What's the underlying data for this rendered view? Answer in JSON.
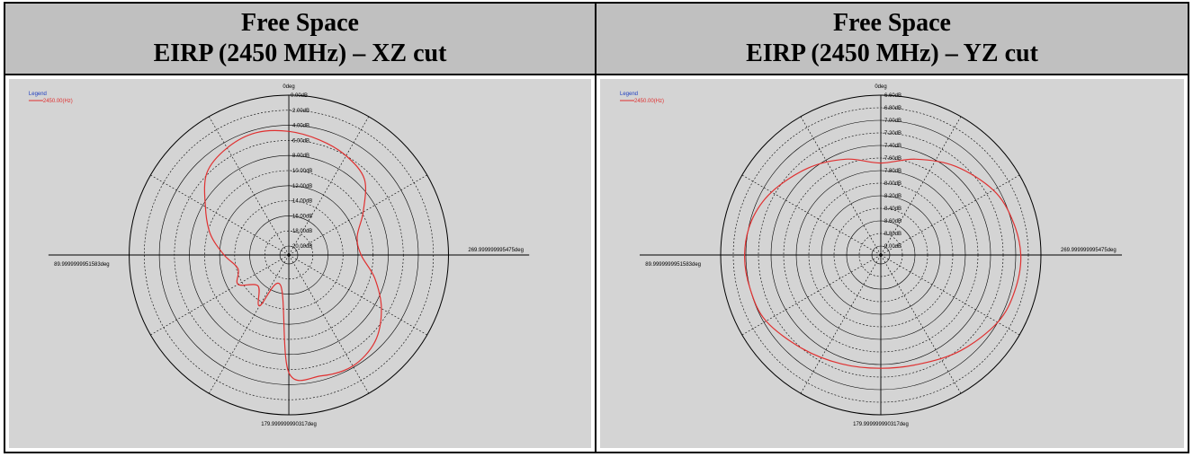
{
  "headers": [
    {
      "line1": "Free Space",
      "line2": "EIRP (2450 MHz) – XZ cut"
    },
    {
      "line1": "Free Space",
      "line2": "EIRP (2450 MHz) – YZ cut"
    }
  ],
  "colors": {
    "trace": "#e03030",
    "legend_title": "#2040c0",
    "grid": "#000000",
    "background": "#d4d4d4"
  },
  "chart_data": [
    {
      "type": "polar",
      "legend_title": "Legend",
      "series": [
        {
          "name": "2450.00(Hz)",
          "color": "#e03030"
        }
      ],
      "angle_labels": {
        "top": "0deg",
        "left": "89.9999999951583deg",
        "right": "269.999999995475deg",
        "bottom": "179.999999990317deg"
      },
      "radial_labels": [
        "0.00dB",
        "-2.00dB",
        "-4.00dB",
        "-6.00dB",
        "-8.00dB",
        "-10.00dB",
        "-12.00dB",
        "-14.00dB",
        "-16.00dB",
        "-18.00dB",
        "-20.00dB"
      ],
      "rlim": [
        -20,
        0
      ],
      "grid": true,
      "points": [
        [
          0,
          -4.8
        ],
        [
          15,
          -4.4
        ],
        [
          30,
          -4.8
        ],
        [
          45,
          -5.8
        ],
        [
          60,
          -8.4
        ],
        [
          75,
          -10.4
        ],
        [
          90,
          -12.6
        ],
        [
          105,
          -14.2
        ],
        [
          120,
          -13.4
        ],
        [
          135,
          -15.4
        ],
        [
          150,
          -13.4
        ],
        [
          165,
          -17.0
        ],
        [
          180,
          -5.6
        ],
        [
          195,
          -4.6
        ],
        [
          210,
          -4.2
        ],
        [
          225,
          -5.0
        ],
        [
          240,
          -7.0
        ],
        [
          255,
          -9.4
        ],
        [
          270,
          -11.6
        ],
        [
          285,
          -11.8
        ],
        [
          300,
          -9.8
        ],
        [
          315,
          -7.0
        ],
        [
          330,
          -6.0
        ],
        [
          345,
          -5.4
        ]
      ]
    },
    {
      "type": "polar",
      "legend_title": "Legend",
      "series": [
        {
          "name": "2450.00(Hz)",
          "color": "#e03030"
        }
      ],
      "angle_labels": {
        "top": "0deg",
        "left": "89.9999999951583deg",
        "right": "269.999999995475deg",
        "bottom": "179.999999990317deg"
      },
      "radial_labels": [
        "-6.60dB",
        "-6.80dB",
        "-7.00dB",
        "-7.20dB",
        "-7.40dB",
        "-7.60dB",
        "-7.80dB",
        "-8.00dB",
        "-8.20dB",
        "-8.40dB",
        "-8.60dB",
        "-8.80dB",
        "-9.00dB"
      ],
      "rlim": [
        -9.0,
        -6.6
      ],
      "grid": true,
      "points": [
        [
          0,
          -7.68
        ],
        [
          20,
          -7.52
        ],
        [
          40,
          -7.34
        ],
        [
          60,
          -7.14
        ],
        [
          75,
          -7.02
        ],
        [
          90,
          -6.98
        ],
        [
          105,
          -7.0
        ],
        [
          120,
          -7.04
        ],
        [
          140,
          -7.2
        ],
        [
          160,
          -7.3
        ],
        [
          180,
          -7.34
        ],
        [
          200,
          -7.3
        ],
        [
          220,
          -7.16
        ],
        [
          240,
          -7.0
        ],
        [
          255,
          -6.94
        ],
        [
          270,
          -6.92
        ],
        [
          285,
          -6.98
        ],
        [
          300,
          -7.08
        ],
        [
          320,
          -7.3
        ],
        [
          340,
          -7.52
        ]
      ]
    }
  ]
}
